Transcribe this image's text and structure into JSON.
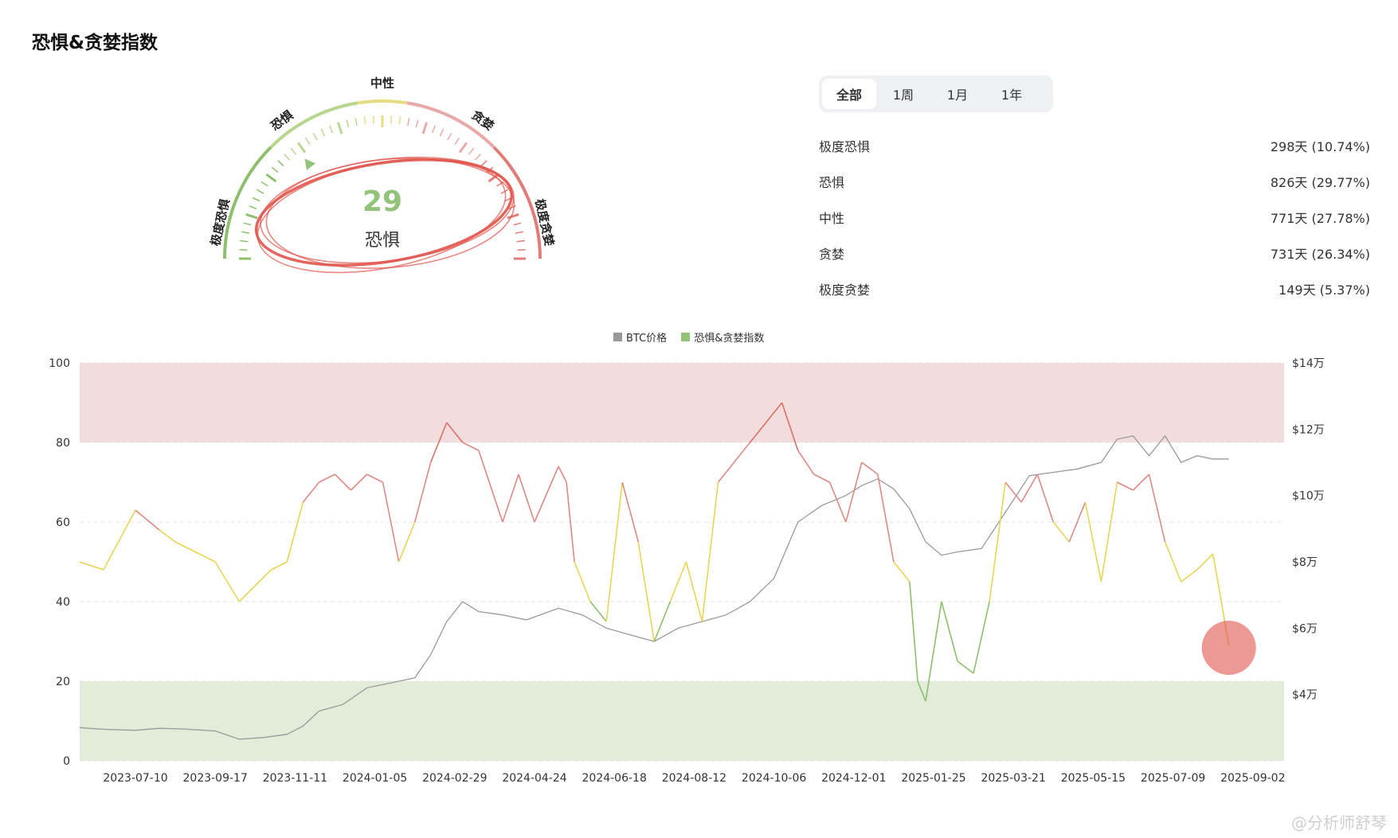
{
  "page": {
    "title": "恐惧&贪婪指数"
  },
  "gauge": {
    "labels": [
      "极度恐惧",
      "恐惧",
      "中性",
      "贪婪",
      "极度贪婪"
    ],
    "value": 29,
    "value_text": "29",
    "status": "恐惧",
    "colors": {
      "extreme_fear": "#8dbf6c",
      "fear": "#b9d68f",
      "neutral": "#e8dc82",
      "greed": "#e8aaa8",
      "extreme_greed": "#e07d78",
      "value": "#93c27a",
      "circle": "#e0544c"
    }
  },
  "tabs": [
    {
      "label": "全部",
      "active": true
    },
    {
      "label": "1周",
      "active": false
    },
    {
      "label": "1月",
      "active": false
    },
    {
      "label": "1年",
      "active": false
    }
  ],
  "stats": [
    {
      "label": "极度恐惧",
      "value": "298天 (10.74%)"
    },
    {
      "label": "恐惧",
      "value": "826天 (29.77%)"
    },
    {
      "label": "中性",
      "value": "771天 (27.78%)"
    },
    {
      "label": "贪婪",
      "value": "731天 (26.34%)"
    },
    {
      "label": "极度贪婪",
      "value": "149天 (5.37%)"
    }
  ],
  "legend": [
    {
      "label": "BTC价格",
      "color": "#999999"
    },
    {
      "label": "恐惧&贪婪指数",
      "color": "#93c27a"
    }
  ],
  "chart_data": {
    "type": "line",
    "x_tick_labels": [
      "2023-07-10",
      "2023-09-17",
      "2023-11-11",
      "2024-01-05",
      "2024-02-29",
      "2024-04-24",
      "2024-06-18",
      "2024-08-12",
      "2024-10-06",
      "2024-12-01",
      "2025-01-25",
      "2025-03-21",
      "2025-05-15",
      "2025-07-09",
      "2025-09-02"
    ],
    "y_left": {
      "min": 0,
      "max": 100,
      "ticks": [
        "0",
        "20",
        "40",
        "60",
        "80",
        "100"
      ]
    },
    "y_right": {
      "min": 20000,
      "max": 140000,
      "ticks": [
        "$4万",
        "$6万",
        "$8万",
        "$10万",
        "$12万",
        "$14万"
      ],
      "tick_values": [
        40000,
        60000,
        80000,
        100000,
        120000,
        140000
      ]
    },
    "bands": [
      {
        "from": 80,
        "to": 100,
        "color": "#f2dcdc"
      },
      {
        "from": 0,
        "to": 20,
        "color": "#e2ecd9"
      }
    ],
    "zone_colors": {
      "extreme_fear": "#8dbf6c",
      "fear": "#8dbf6c",
      "neutral": "#e8d556",
      "greed": "#dc8a86",
      "extreme_greed": "#d9706a"
    },
    "series": [
      {
        "name": "恐惧&贪婪指数",
        "x_index": [
          0,
          0.3,
          0.7,
          1.0,
          1.2,
          1.5,
          1.7,
          2.0,
          2.2,
          2.4,
          2.6,
          2.8,
          3.0,
          3.2,
          3.4,
          3.6,
          3.8,
          4.0,
          4.2,
          4.4,
          4.6,
          4.8,
          5.0,
          5.3,
          5.5,
          5.7,
          6.0,
          6.1,
          6.2,
          6.4,
          6.6,
          6.8,
          7.0,
          7.2,
          7.4,
          7.6,
          7.8,
          8.0,
          8.2,
          8.4,
          8.6,
          8.8,
          9.0,
          9.2,
          9.4,
          9.6,
          9.8,
          10.0,
          10.2,
          10.4,
          10.5,
          10.6,
          10.8,
          11.0,
          11.2,
          11.4,
          11.6,
          11.8,
          12.0,
          12.2,
          12.4,
          12.6,
          12.8,
          13.0,
          13.2,
          13.4,
          13.6,
          13.8,
          14.0,
          14.2,
          14.4
        ],
        "values": [
          50,
          48,
          63,
          58,
          55,
          52,
          50,
          40,
          44,
          48,
          50,
          65,
          70,
          72,
          68,
          72,
          70,
          50,
          60,
          75,
          85,
          80,
          78,
          60,
          72,
          60,
          74,
          70,
          50,
          40,
          35,
          70,
          55,
          30,
          40,
          50,
          35,
          70,
          75,
          80,
          85,
          90,
          78,
          72,
          70,
          60,
          75,
          72,
          50,
          45,
          20,
          15,
          40,
          25,
          22,
          40,
          70,
          65,
          72,
          60,
          55,
          65,
          45,
          70,
          68,
          72,
          55,
          45,
          48,
          52,
          29
        ]
      },
      {
        "name": "BTC价格",
        "x_index": [
          0,
          0.3,
          0.7,
          1.0,
          1.3,
          1.7,
          2.0,
          2.3,
          2.6,
          2.8,
          3.0,
          3.3,
          3.6,
          3.9,
          4.2,
          4.4,
          4.6,
          4.8,
          5.0,
          5.3,
          5.6,
          6.0,
          6.3,
          6.6,
          6.9,
          7.2,
          7.5,
          7.8,
          8.1,
          8.4,
          8.7,
          9.0,
          9.3,
          9.6,
          9.8,
          10.0,
          10.2,
          10.4,
          10.6,
          10.8,
          11.0,
          11.3,
          11.6,
          11.9,
          12.2,
          12.5,
          12.8,
          13.0,
          13.2,
          13.4,
          13.6,
          13.8,
          14.0,
          14.2,
          14.4
        ],
        "values": [
          30000,
          29500,
          29200,
          29800,
          29600,
          29000,
          26500,
          27000,
          28000,
          30500,
          35000,
          37000,
          42000,
          43500,
          45000,
          52000,
          62000,
          68000,
          65000,
          64000,
          62500,
          66000,
          64000,
          60000,
          58000,
          56000,
          60000,
          62000,
          64000,
          68000,
          75000,
          92000,
          97000,
          100000,
          103000,
          105000,
          102000,
          96000,
          86000,
          82000,
          83000,
          84000,
          95000,
          106000,
          107000,
          108000,
          110000,
          117000,
          118000,
          112000,
          118000,
          110000,
          112000,
          111000,
          111000
        ]
      }
    ]
  },
  "watermark": "@分析师舒琴"
}
